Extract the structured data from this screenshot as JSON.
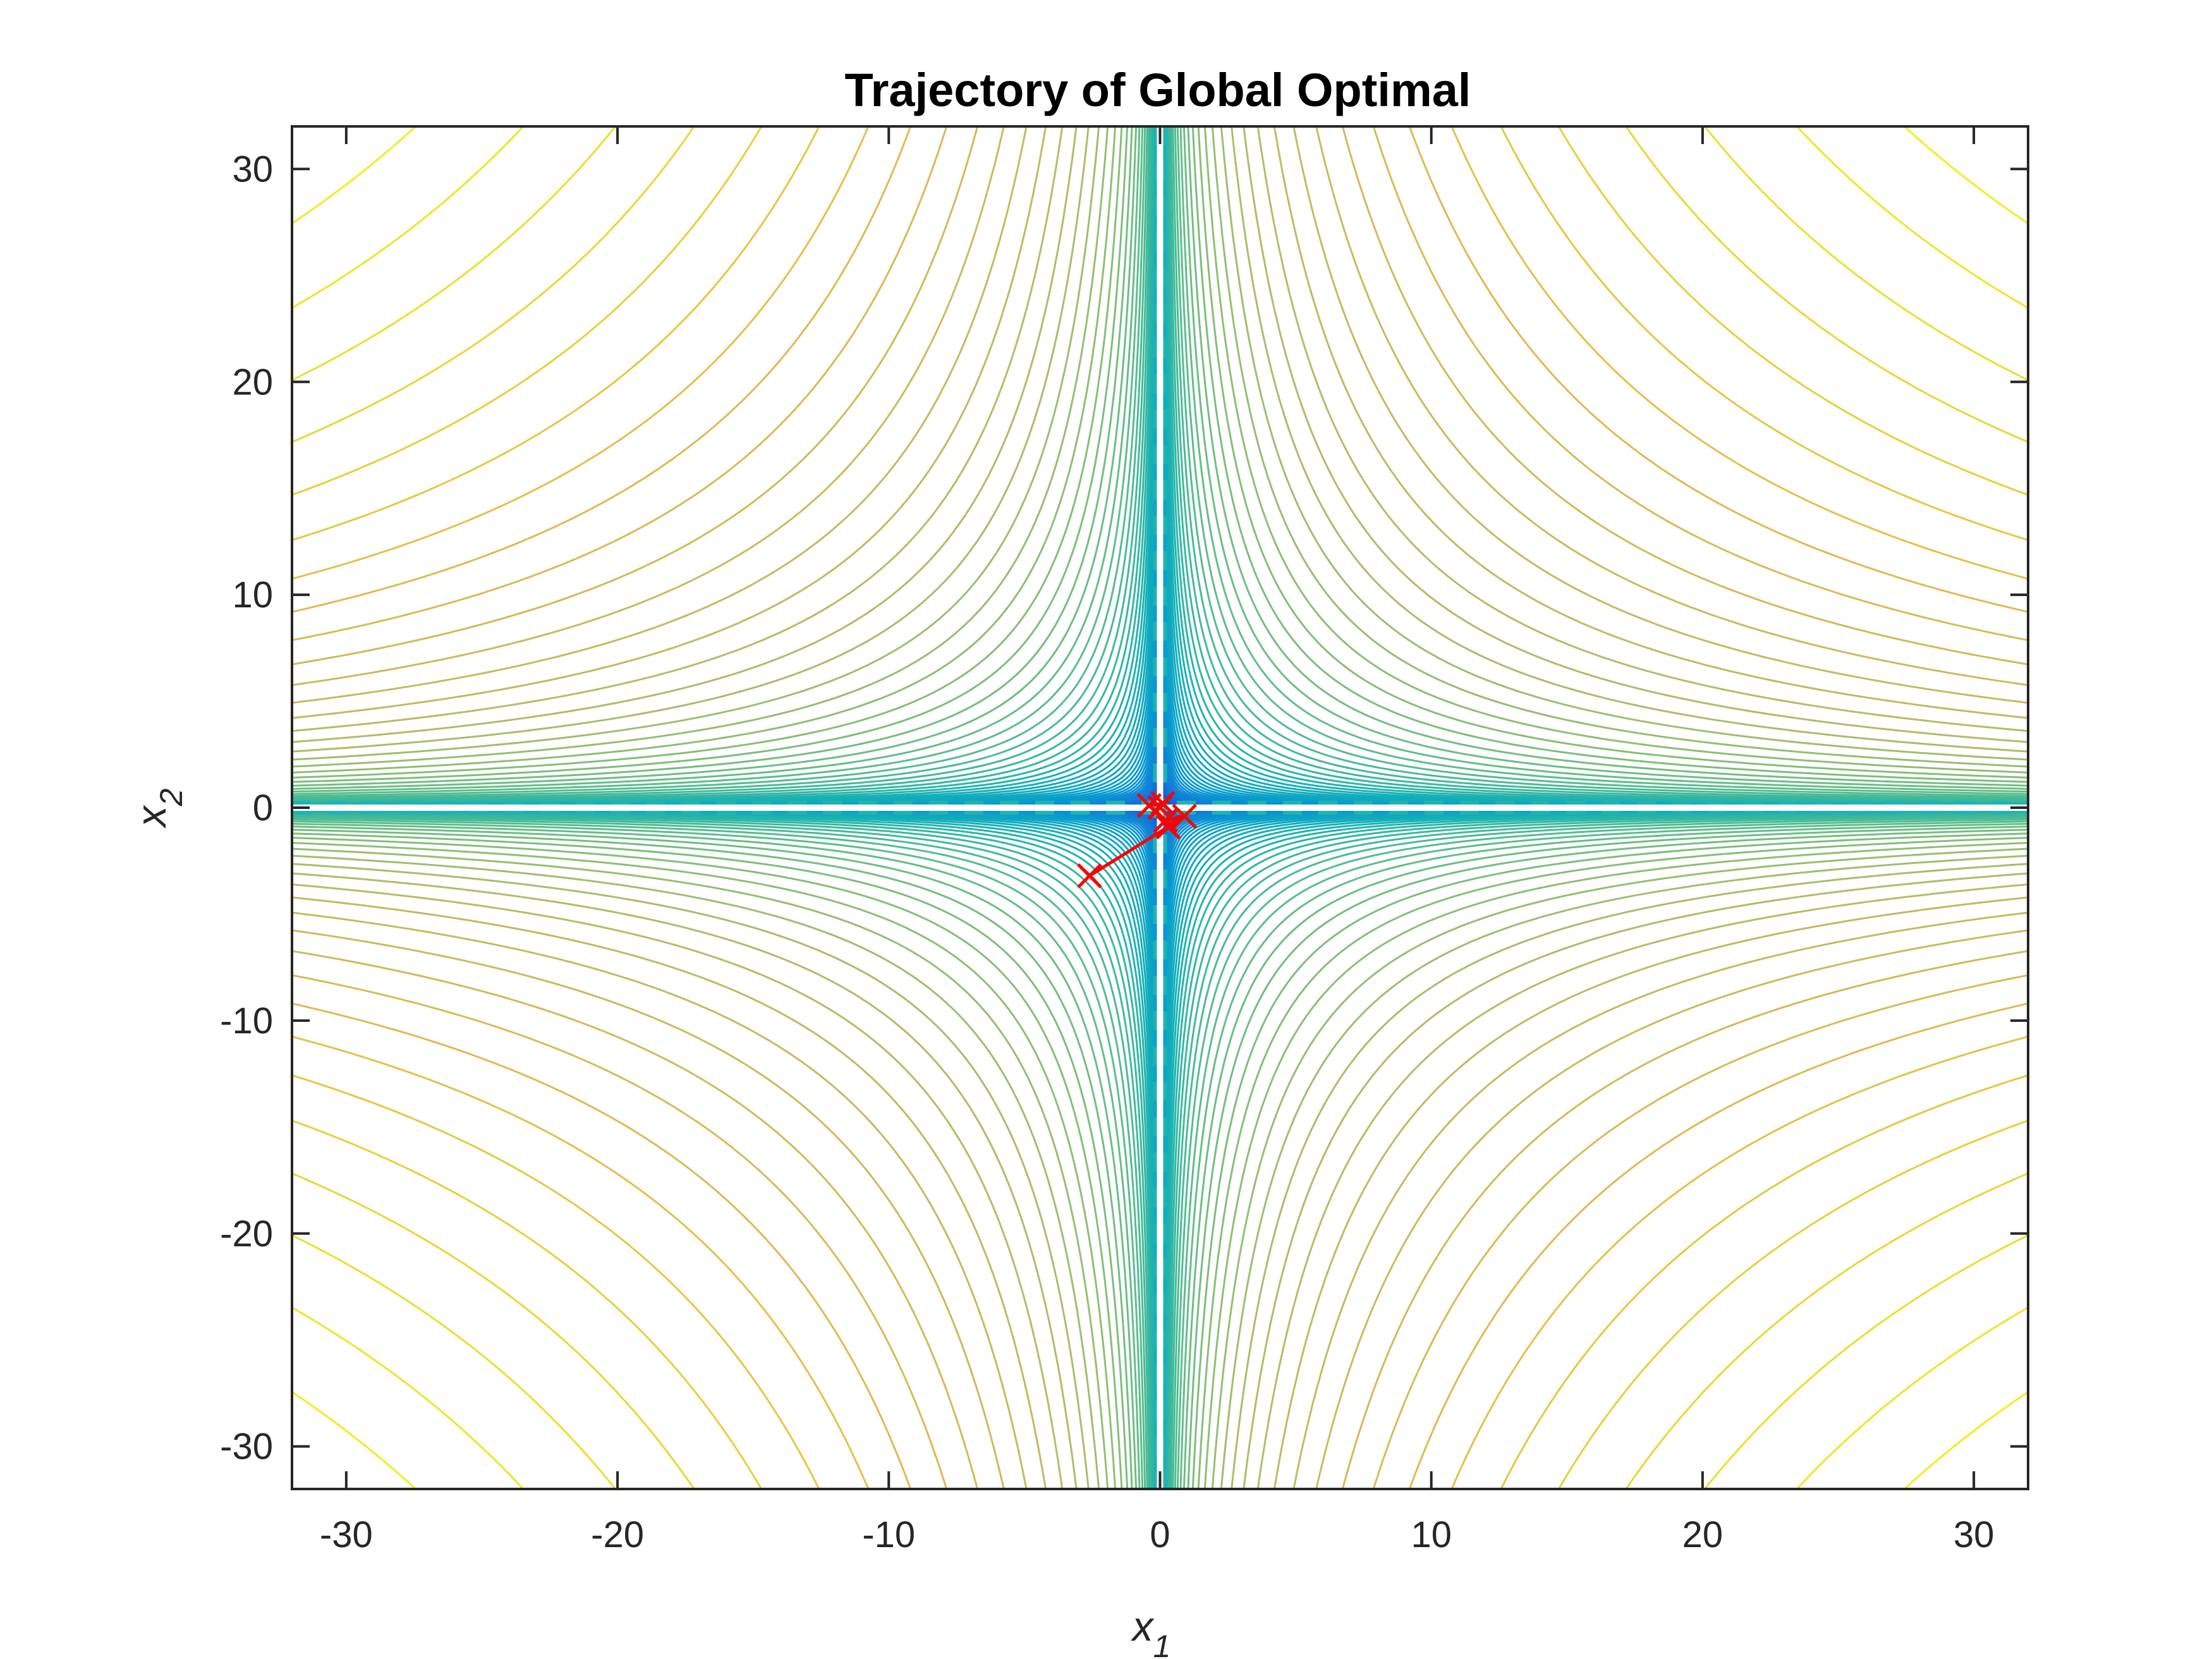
{
  "chart_data": {
    "type": "contour",
    "title": "Trajectory of Global Optimal",
    "xlabel": "x",
    "xlabel_subscript": "1",
    "ylabel": "x",
    "ylabel_subscript": "2",
    "xlim": [
      -32,
      32
    ],
    "ylim": [
      -32,
      32
    ],
    "xticks": [
      -30,
      -20,
      -10,
      0,
      10,
      20,
      30
    ],
    "yticks": [
      -30,
      -20,
      -10,
      0,
      10,
      20,
      30
    ],
    "colormap": "parula",
    "contour_function": "levels of log10(|x1*x2|)",
    "contour_level_count": 70,
    "grid": false,
    "trajectory": {
      "color": "#ff0000",
      "marker": "x",
      "points": [
        {
          "x": -2.6,
          "y": -3.2
        },
        {
          "x": 0.3,
          "y": -0.9
        },
        {
          "x": 0.9,
          "y": -0.4
        },
        {
          "x": 0.2,
          "y": -0.6
        },
        {
          "x": -0.4,
          "y": 0.1
        },
        {
          "x": 0.1,
          "y": 0.2
        },
        {
          "x": 0.0,
          "y": 0.0
        }
      ]
    }
  }
}
